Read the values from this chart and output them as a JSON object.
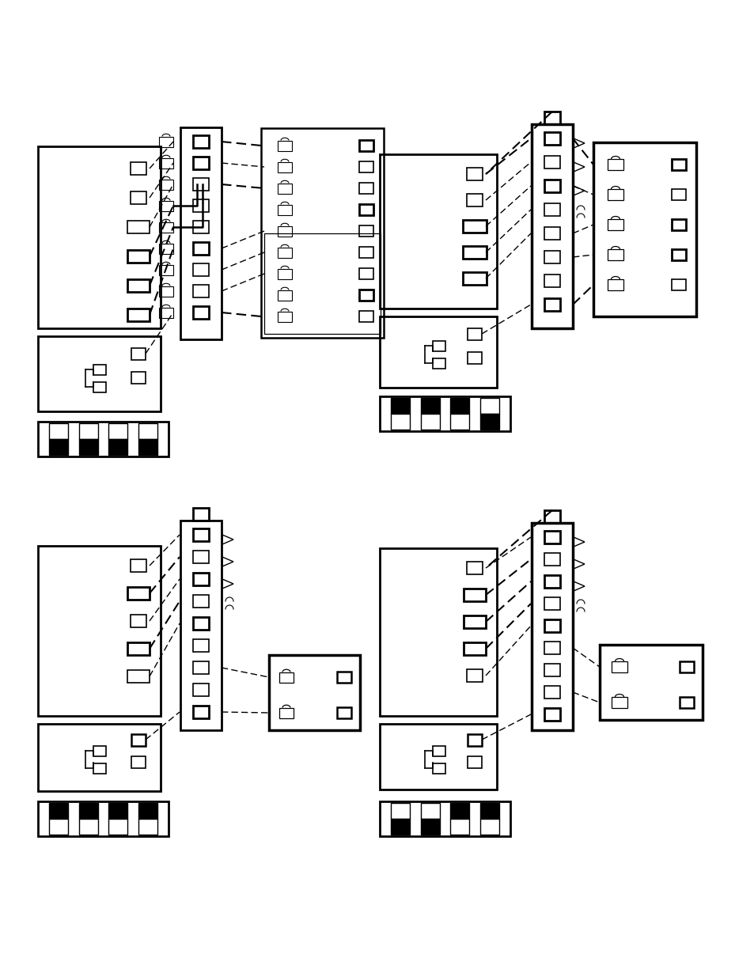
{
  "bg_color": "#ffffff",
  "page_width": 9.54,
  "page_height": 12.35
}
